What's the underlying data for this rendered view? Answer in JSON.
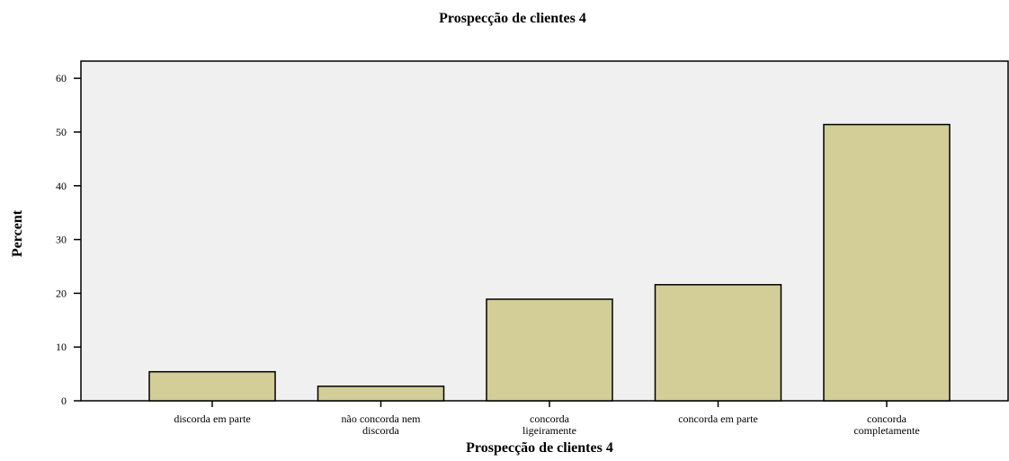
{
  "chart_data": {
    "type": "bar",
    "title": "Prospecção de clientes 4",
    "x_label": "Prospecção de clientes 4",
    "y_label": "Percent",
    "categories": [
      "discorda em parte",
      "não concorda nem discorda",
      "concorda ligeiramente",
      "concorda em parte",
      "concorda completamente"
    ],
    "values": [
      5.4,
      2.7,
      18.9,
      21.6,
      51.4
    ],
    "color": "#d3ce97",
    "ylim": [
      0,
      63.2
    ],
    "yticks": [
      0,
      10,
      20,
      30,
      40,
      50,
      60
    ],
    "grid": false
  }
}
